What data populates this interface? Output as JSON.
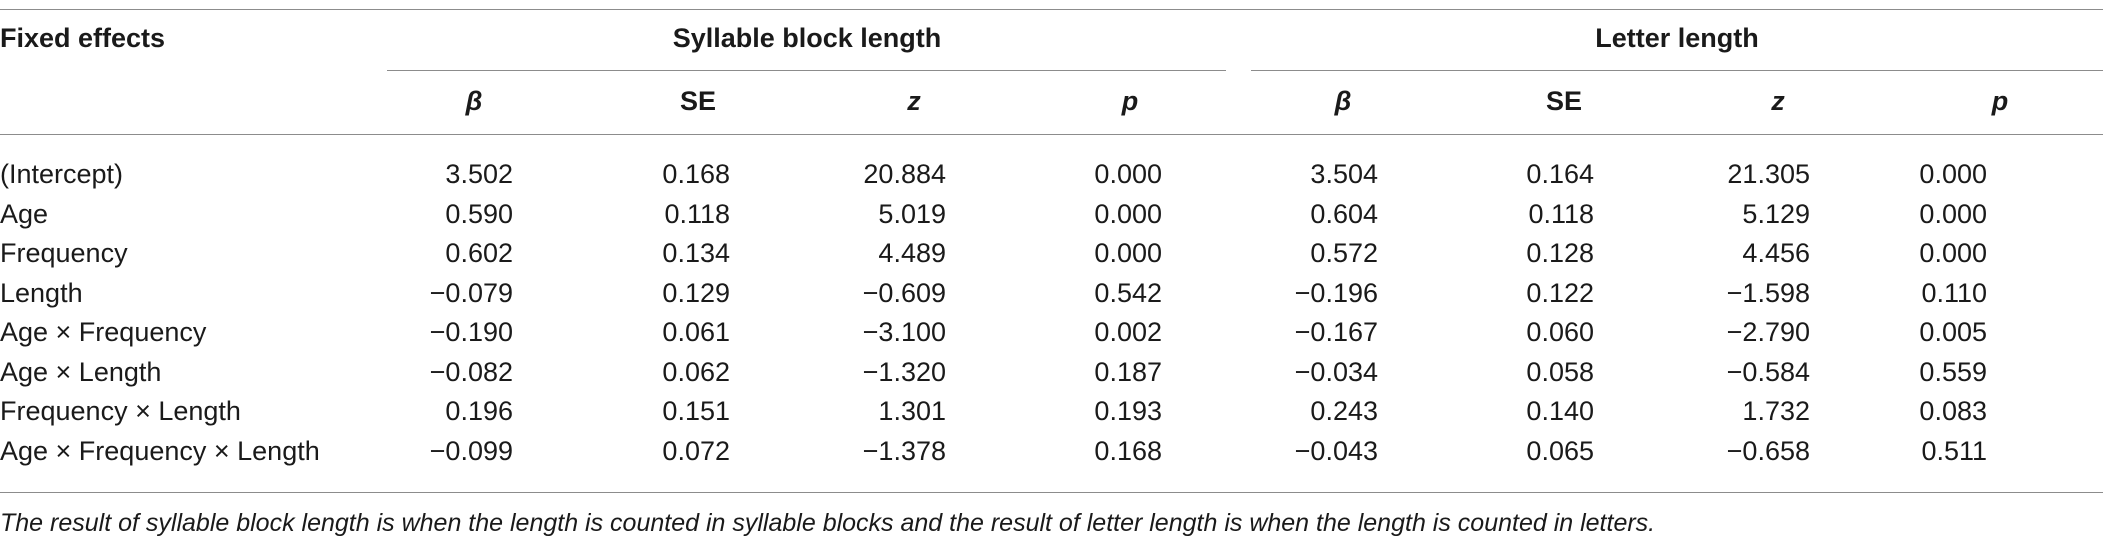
{
  "table": {
    "header": {
      "row_label": "Fixed effects",
      "group1": "Syllable block length",
      "group2": "Letter length",
      "columns": [
        "β",
        "SE",
        "z",
        "p",
        "β",
        "SE",
        "z",
        "p"
      ]
    },
    "rows": [
      {
        "label": "(Intercept)",
        "values": [
          "3.502",
          "0.168",
          "20.884",
          "0.000",
          "3.504",
          "0.164",
          "21.305",
          "0.000"
        ]
      },
      {
        "label": "Age",
        "values": [
          "0.590",
          "0.118",
          "5.019",
          "0.000",
          "0.604",
          "0.118",
          "5.129",
          "0.000"
        ]
      },
      {
        "label": "Frequency",
        "values": [
          "0.602",
          "0.134",
          "4.489",
          "0.000",
          "0.572",
          "0.128",
          "4.456",
          "0.000"
        ]
      },
      {
        "label": "Length",
        "values": [
          "−0.079",
          "0.129",
          "−0.609",
          "0.542",
          "−0.196",
          "0.122",
          "−1.598",
          "0.110"
        ]
      },
      {
        "label": "Age × Frequency",
        "values": [
          "−0.190",
          "0.061",
          "−3.100",
          "0.002",
          "−0.167",
          "0.060",
          "−2.790",
          "0.005"
        ]
      },
      {
        "label": "Age × Length",
        "values": [
          "−0.082",
          "0.062",
          "−1.320",
          "0.187",
          "−0.034",
          "0.058",
          "−0.584",
          "0.559"
        ]
      },
      {
        "label": "Frequency × Length",
        "values": [
          "0.196",
          "0.151",
          "1.301",
          "0.193",
          "0.243",
          "0.140",
          "1.732",
          "0.083"
        ]
      },
      {
        "label": "Age × Frequency × Length",
        "values": [
          "−0.099",
          "0.072",
          "−1.378",
          "0.168",
          "−0.043",
          "0.065",
          "−0.658",
          "0.511"
        ]
      }
    ],
    "caption": "The result of syllable block length is when the length is counted in syllable blocks and the result of letter length is when the length is counted in letters."
  }
}
